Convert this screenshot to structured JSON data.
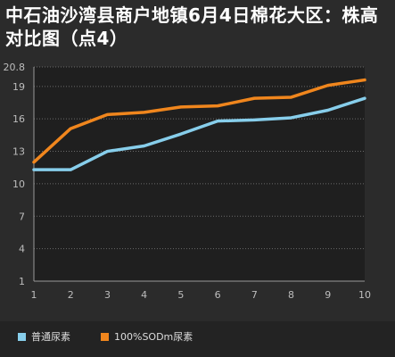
{
  "chart_data": {
    "type": "line",
    "title": "中石油沙湾县商户地镇6月4日棉花大区：株高对比图（点4）",
    "x": [
      1,
      2,
      3,
      4,
      5,
      6,
      7,
      8,
      9,
      10
    ],
    "x_tick_labels": [
      "1",
      "2",
      "3",
      "4",
      "5",
      "6",
      "7",
      "8",
      "9",
      "10"
    ],
    "y_tick_labels": [
      "1",
      "4",
      "7",
      "10",
      "13",
      "16",
      "19",
      "20.8"
    ],
    "y_ticks": [
      1,
      4,
      7,
      10,
      13,
      16,
      19,
      20.8
    ],
    "ylim": [
      1,
      20.8
    ],
    "xlim": [
      1,
      10
    ],
    "grid": true,
    "legend_position": "bottom",
    "series": [
      {
        "name": "普通尿素",
        "color": "#87ceeb",
        "values": [
          11.3,
          11.3,
          13.0,
          13.5,
          14.6,
          15.8,
          15.9,
          16.1,
          16.8,
          17.9
        ]
      },
      {
        "name": "100%SODm尿素",
        "color": "#f0861d",
        "values": [
          12.0,
          15.1,
          16.4,
          16.6,
          17.1,
          17.2,
          17.9,
          18.0,
          19.1,
          19.6
        ]
      }
    ]
  }
}
